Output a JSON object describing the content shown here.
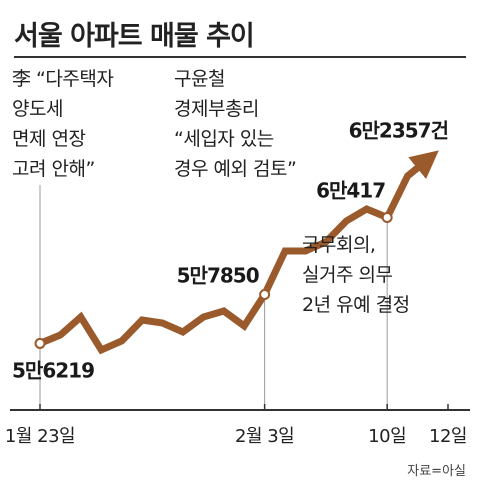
{
  "title": "서울 아파트 매물 추이",
  "source": "자료=아실",
  "colors": {
    "line": "#9a5a2c",
    "text": "#222222",
    "axis": "#333333",
    "guide": "#999999"
  },
  "annotations": [
    {
      "text": "李 “다주택자\n양도세\n면제 연장\n고려 안해”"
    },
    {
      "text": "구윤철\n경제부총리\n“세입자 있는\n경우 예외 검토”"
    },
    {
      "text": "국무회의,\n실거주 의무\n2년 유예 결정"
    }
  ],
  "chart_data": {
    "type": "line",
    "title": "서울 아파트 매물 추이",
    "x_tick_labels": [
      "1월 23일",
      "2월 3일",
      "10일",
      "12일"
    ],
    "x_tick_index": [
      0,
      11,
      17,
      18
    ],
    "ylim": [
      55000,
      65000
    ],
    "series": [
      {
        "values": [
          56219,
          56500,
          57100,
          56000,
          56300,
          57000,
          56900,
          56600,
          57100,
          57300,
          56800,
          57850,
          59300,
          59300,
          59600,
          60300,
          60700,
          60417,
          61800,
          62357
        ]
      }
    ],
    "value_labels": [
      {
        "index": 0,
        "text": "5만6219"
      },
      {
        "index": 11,
        "text": "5만7850"
      },
      {
        "index": 17,
        "text": "6만417"
      },
      {
        "index": 19,
        "text": "6만2357건"
      }
    ],
    "grid": false,
    "legend": "none"
  }
}
